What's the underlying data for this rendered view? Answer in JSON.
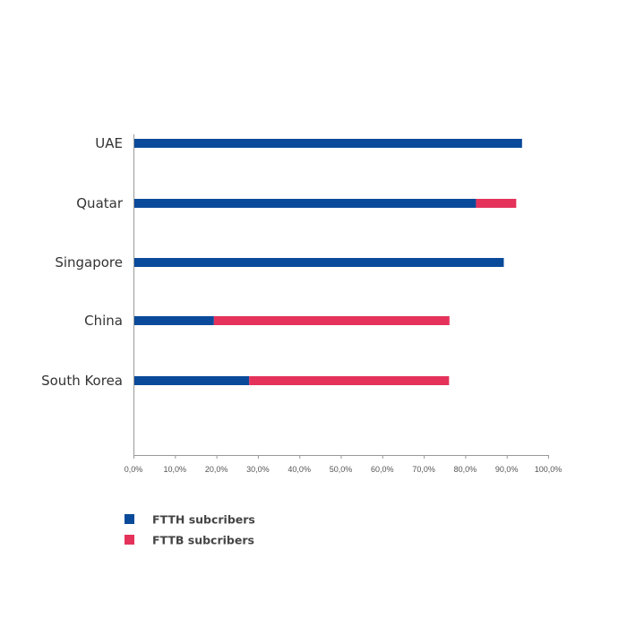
{
  "chart_data": {
    "type": "bar",
    "orientation": "horizontal",
    "stacked": true,
    "categories": [
      "UAE",
      "Quatar",
      "Singapore",
      "China",
      "South Korea"
    ],
    "series": [
      {
        "name": "FTTH subcribers",
        "values": [
          93.7,
          82.6,
          89.3,
          19.4,
          27.9
        ]
      },
      {
        "name": "FTTB subcribers",
        "values": [
          0.0,
          9.7,
          0.0,
          56.8,
          48.2
        ]
      }
    ],
    "xlim": [
      0,
      100
    ],
    "xticks": [
      0,
      10,
      20,
      30,
      40,
      50,
      60,
      70,
      80,
      90,
      100
    ],
    "xtick_labels": [
      "0,0%",
      "10,0%",
      "20,0%",
      "30,0%",
      "40,0%",
      "50,0%",
      "60,0%",
      "70,0%",
      "80,0%",
      "90,0%",
      "100,0%"
    ],
    "title": "",
    "xlabel": "",
    "ylabel": "",
    "grid": false,
    "legend_position": "bottom-left",
    "colors": {
      "FTTH subcribers": "#0a4a9a",
      "FTTB subcribers": "#e4325b",
      "axis": "#999999"
    }
  }
}
